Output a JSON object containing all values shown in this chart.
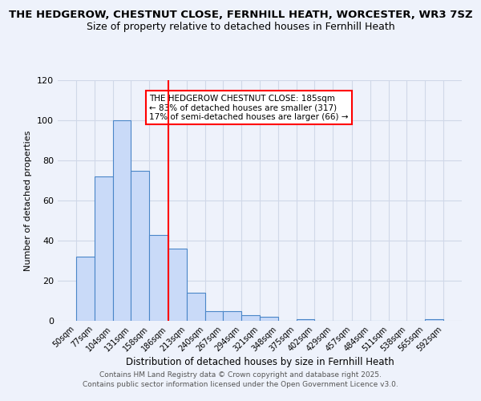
{
  "title": "THE HEDGEROW, CHESTNUT CLOSE, FERNHILL HEATH, WORCESTER, WR3 7SZ",
  "subtitle": "Size of property relative to detached houses in Fernhill Heath",
  "xlabel": "Distribution of detached houses by size in Fernhill Heath",
  "ylabel": "Number of detached properties",
  "bar_color": "#c9daf8",
  "bar_edge_color": "#4a86c8",
  "bins": [
    50,
    77,
    104,
    131,
    158,
    186,
    213,
    240,
    267,
    294,
    321,
    348,
    375,
    402,
    429,
    457,
    484,
    511,
    538,
    565,
    592
  ],
  "counts": [
    32,
    72,
    100,
    75,
    43,
    36,
    14,
    5,
    5,
    3,
    2,
    0,
    1,
    0,
    0,
    0,
    0,
    0,
    0,
    1
  ],
  "redline_x": 186,
  "ylim": [
    0,
    120
  ],
  "yticks": [
    0,
    20,
    40,
    60,
    80,
    100,
    120
  ],
  "annotation_text": "THE HEDGEROW CHESTNUT CLOSE: 185sqm\n← 83% of detached houses are smaller (317)\n17% of semi-detached houses are larger (66) →",
  "background_color": "#eef2fb",
  "grid_color": "#d0d8e8",
  "footer1": "Contains HM Land Registry data © Crown copyright and database right 2025.",
  "footer2": "Contains public sector information licensed under the Open Government Licence v3.0.",
  "title_fontsize": 9.5,
  "subtitle_fontsize": 9
}
